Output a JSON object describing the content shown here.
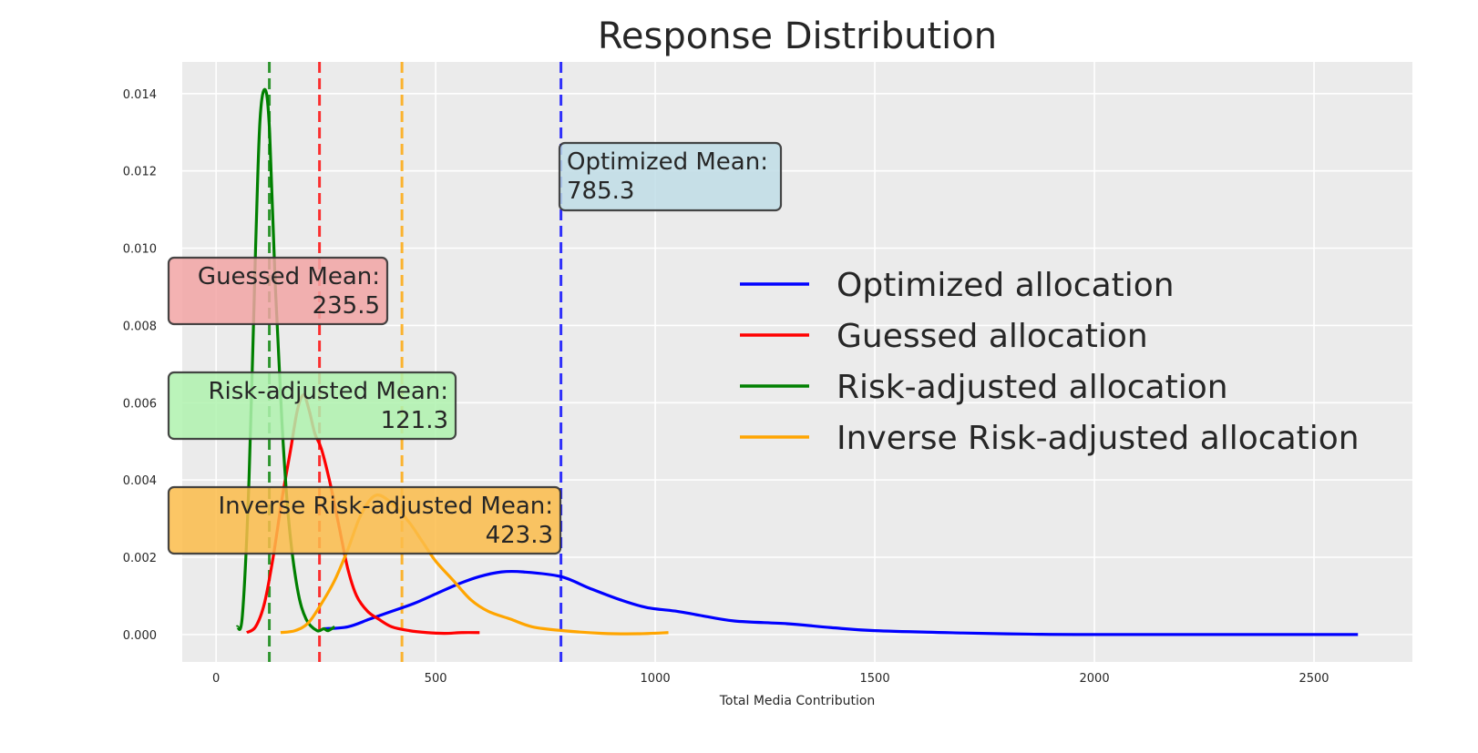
{
  "chart_data": {
    "type": "line",
    "title": "Response Distribution",
    "xlabel": "Total Media Contribution",
    "ylabel": "",
    "xlim": [
      -77,
      2724
    ],
    "ylim": [
      -0.00071,
      0.01482
    ],
    "grid": true,
    "legend_placement": "center-right",
    "x_ticks": [
      0,
      500,
      1000,
      1500,
      2000,
      2500
    ],
    "x_tick_labels": [
      "0",
      "500",
      "1000",
      "1500",
      "2000",
      "2500"
    ],
    "y_ticks": [
      0,
      0.002,
      0.004,
      0.006,
      0.008,
      0.01,
      0.012,
      0.014
    ],
    "y_tick_labels": [
      "0.000",
      "0.002",
      "0.004",
      "0.006",
      "0.008",
      "0.010",
      "0.012",
      "0.014"
    ],
    "series": [
      {
        "name": "Optimized allocation",
        "color": "#0000ff",
        "mean": 785.3,
        "mean_label": "Optimized Mean:",
        "mean_value": "785.3",
        "box_color": "#c0dde6",
        "points": [
          [
            245,
            0.00015
          ],
          [
            300,
            0.0002
          ],
          [
            350,
            0.0004
          ],
          [
            400,
            0.0006
          ],
          [
            450,
            0.0008
          ],
          [
            500,
            0.00105
          ],
          [
            550,
            0.0013
          ],
          [
            600,
            0.0015
          ],
          [
            650,
            0.00162
          ],
          [
            700,
            0.00162
          ],
          [
            785,
            0.0015
          ],
          [
            850,
            0.0012
          ],
          [
            920,
            0.0009
          ],
          [
            980,
            0.0007
          ],
          [
            1050,
            0.0006
          ],
          [
            1100,
            0.0005
          ],
          [
            1180,
            0.00035
          ],
          [
            1300,
            0.00028
          ],
          [
            1400,
            0.00018
          ],
          [
            1500,
            0.0001
          ],
          [
            1700,
            4e-05
          ],
          [
            1850,
            1e-05
          ],
          [
            2000,
            0.0
          ],
          [
            2600,
            0.0
          ]
        ]
      },
      {
        "name": "Guessed allocation",
        "color": "#ff0000",
        "mean": 235.5,
        "mean_label": "Guessed Mean:",
        "mean_value": "235.5",
        "box_color": "#f2a5a5",
        "points": [
          [
            70,
            5e-05
          ],
          [
            90,
            0.0002
          ],
          [
            110,
            0.0008
          ],
          [
            130,
            0.002
          ],
          [
            150,
            0.0035
          ],
          [
            170,
            0.0048
          ],
          [
            185,
            0.0058
          ],
          [
            199,
            0.0062
          ],
          [
            212,
            0.0058
          ],
          [
            225,
            0.0052
          ],
          [
            240,
            0.0048
          ],
          [
            260,
            0.0039
          ],
          [
            280,
            0.0028
          ],
          [
            300,
            0.0017
          ],
          [
            320,
            0.001
          ],
          [
            345,
            0.0006
          ],
          [
            370,
            0.0004
          ],
          [
            400,
            0.0002
          ],
          [
            440,
            0.0001
          ],
          [
            480,
            5e-05
          ],
          [
            520,
            3e-05
          ],
          [
            560,
            5e-05
          ],
          [
            600,
            5e-05
          ]
        ]
      },
      {
        "name": "Risk-adjusted allocation",
        "color": "#008000",
        "mean": 121.3,
        "mean_label": "Risk-adjusted Mean:",
        "mean_value": "121.3",
        "box_color": "#aff2ae",
        "points": [
          [
            48,
            0.0002
          ],
          [
            60,
            0.0005
          ],
          [
            75,
            0.004
          ],
          [
            90,
            0.01
          ],
          [
            100,
            0.0133
          ],
          [
            112,
            0.0141
          ],
          [
            122,
            0.013
          ],
          [
            135,
            0.009
          ],
          [
            150,
            0.0055
          ],
          [
            165,
            0.003
          ],
          [
            185,
            0.0012
          ],
          [
            205,
            0.0004
          ],
          [
            230,
            0.0001
          ],
          [
            245,
            0.00015
          ],
          [
            255,
            0.0001
          ],
          [
            270,
            0.0002
          ]
        ]
      },
      {
        "name": "Inverse Risk-adjusted allocation",
        "color": "#ffa500",
        "mean": 423.3,
        "mean_label": "Inverse Risk-adjusted Mean:",
        "mean_value": "423.3",
        "box_color": "#fcbc4a",
        "points": [
          [
            147,
            5e-05
          ],
          [
            180,
            0.0001
          ],
          [
            210,
            0.0003
          ],
          [
            240,
            0.0008
          ],
          [
            270,
            0.0014
          ],
          [
            300,
            0.0022
          ],
          [
            330,
            0.0031
          ],
          [
            363,
            0.0036
          ],
          [
            400,
            0.0034
          ],
          [
            440,
            0.0029
          ],
          [
            470,
            0.0024
          ],
          [
            500,
            0.0019
          ],
          [
            540,
            0.0014
          ],
          [
            580,
            0.0009
          ],
          [
            620,
            0.0006
          ],
          [
            670,
            0.0004
          ],
          [
            720,
            0.0002
          ],
          [
            790,
            0.0001
          ],
          [
            880,
            3e-05
          ],
          [
            960,
            2e-05
          ],
          [
            1030,
            5e-05
          ]
        ]
      }
    ]
  }
}
